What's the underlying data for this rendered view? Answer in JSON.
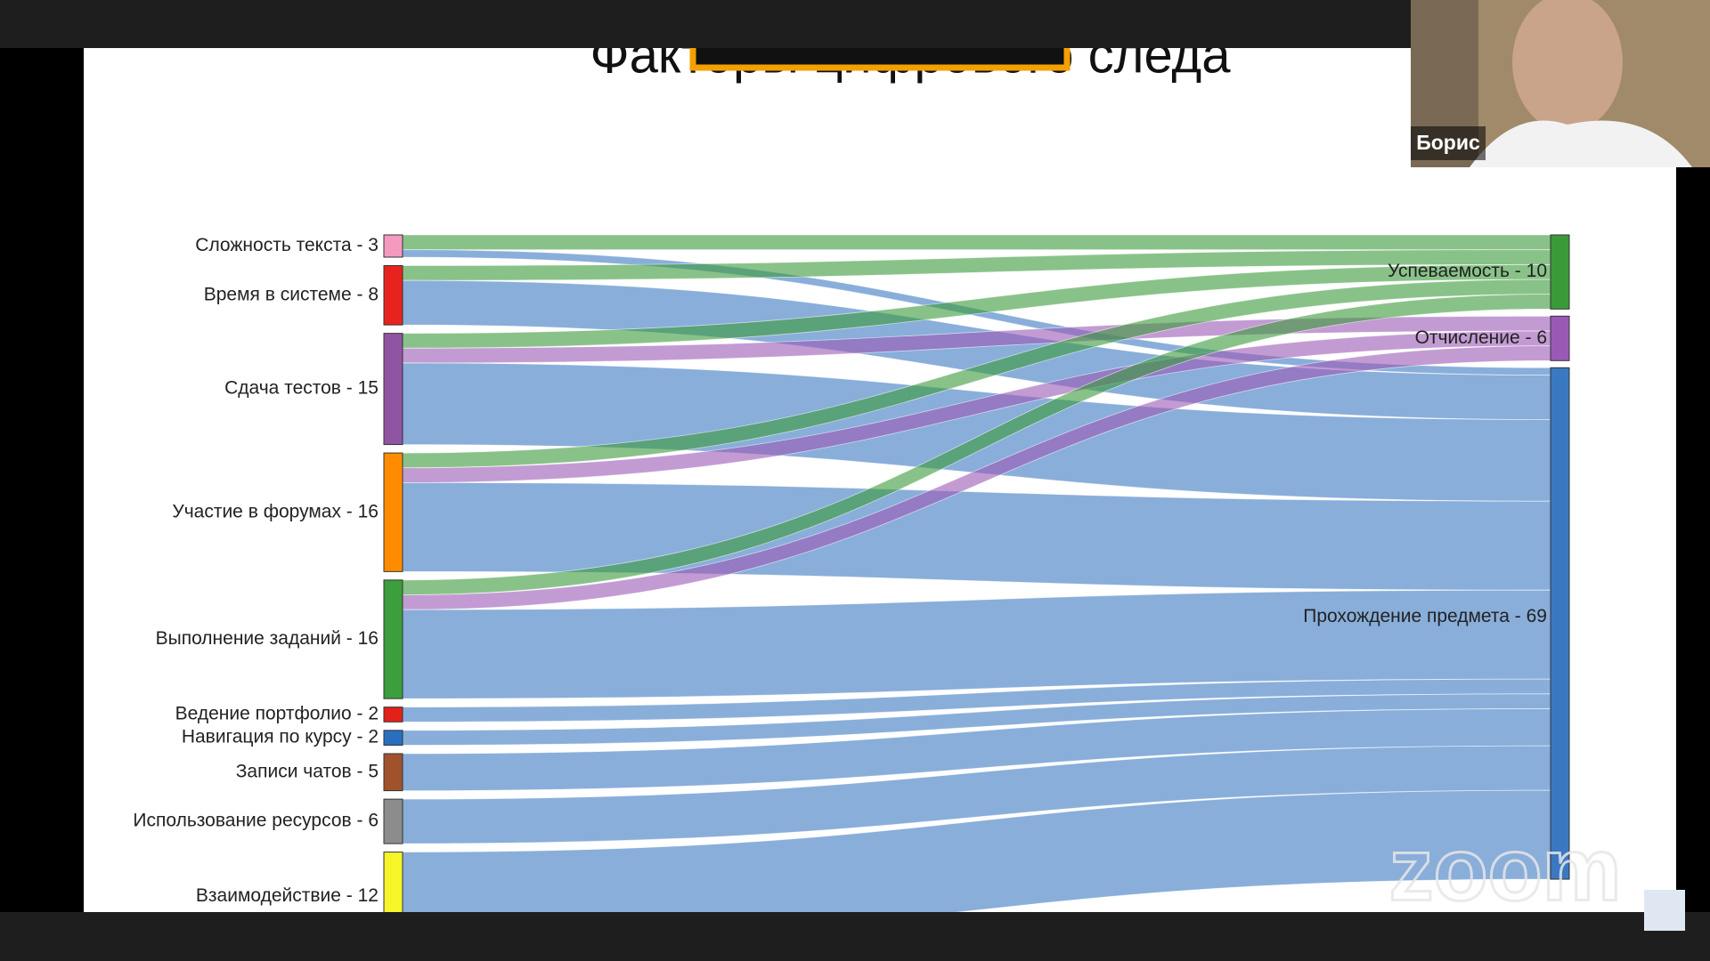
{
  "ui": {
    "participant_name": "Борис",
    "watermark": "zoom"
  },
  "chart_data": {
    "type": "sankey",
    "title": "Факторы цифрового следа",
    "nodes": [
      {
        "label": "Сложность текста - 3",
        "value": 3,
        "color": "#f49ac1",
        "column": 0
      },
      {
        "label": "Время в системе - 8",
        "value": 8,
        "color": "#e8231f",
        "column": 0
      },
      {
        "label": "Сдача тестов - 15",
        "value": 15,
        "color": "#9055a2",
        "column": 0
      },
      {
        "label": "Участие в форумах - 16",
        "value": 16,
        "color": "#ff8c00",
        "column": 0
      },
      {
        "label": "Выполнение заданий - 16",
        "value": 16,
        "color": "#3c9e3c",
        "column": 0
      },
      {
        "label": "Ведение портфолио - 2",
        "value": 2,
        "color": "#e32119",
        "column": 0
      },
      {
        "label": "Навигация по курсу - 2",
        "value": 2,
        "color": "#2a6fbf",
        "column": 0
      },
      {
        "label": "Записи чатов - 5",
        "value": 5,
        "color": "#a0522d",
        "column": 0
      },
      {
        "label": "Использование ресурсов - 6",
        "value": 6,
        "color": "#8c8c8c",
        "column": 0
      },
      {
        "label": "Взаимодействие - 12",
        "value": 12,
        "color": "#f5f528",
        "column": 0
      },
      {
        "label": "Успеваемость - 10",
        "value": 10,
        "color": "#3a9a3a",
        "column": 1
      },
      {
        "label": "Отчисление - 6",
        "value": 6,
        "color": "#9b59b6",
        "column": 1
      },
      {
        "label": "Прохождение предмета - 69",
        "value": 69,
        "color": "#3a78c2",
        "column": 1
      }
    ],
    "links": [
      {
        "source": 0,
        "target": 10,
        "value": 2
      },
      {
        "source": 0,
        "target": 12,
        "value": 1
      },
      {
        "source": 1,
        "target": 10,
        "value": 2
      },
      {
        "source": 1,
        "target": 12,
        "value": 6
      },
      {
        "source": 2,
        "target": 10,
        "value": 2
      },
      {
        "source": 2,
        "target": 11,
        "value": 2
      },
      {
        "source": 2,
        "target": 12,
        "value": 11
      },
      {
        "source": 3,
        "target": 10,
        "value": 2
      },
      {
        "source": 3,
        "target": 11,
        "value": 2
      },
      {
        "source": 3,
        "target": 12,
        "value": 12
      },
      {
        "source": 4,
        "target": 10,
        "value": 2
      },
      {
        "source": 4,
        "target": 11,
        "value": 2
      },
      {
        "source": 4,
        "target": 12,
        "value": 12
      },
      {
        "source": 5,
        "target": 12,
        "value": 2
      },
      {
        "source": 6,
        "target": 12,
        "value": 2
      },
      {
        "source": 7,
        "target": 12,
        "value": 5
      },
      {
        "source": 8,
        "target": 12,
        "value": 6
      },
      {
        "source": 9,
        "target": 12,
        "value": 12
      }
    ]
  }
}
